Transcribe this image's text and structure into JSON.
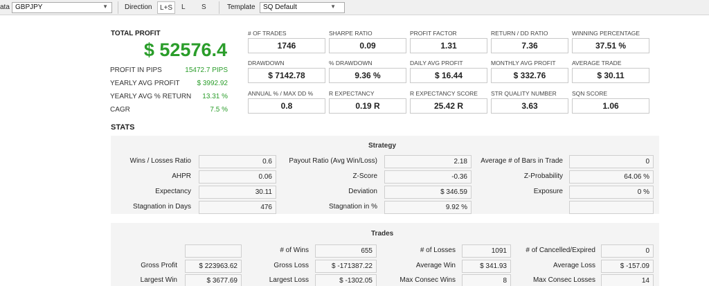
{
  "toolbar": {
    "data_label": "ata",
    "symbol": "GBPJPY",
    "direction_label": "Direction",
    "directions": [
      "L+S",
      "L",
      "S"
    ],
    "active_direction": "L+S",
    "template_label": "Template",
    "template_value": "SQ Default"
  },
  "summary": {
    "total_profit_label": "TOTAL PROFIT",
    "total_profit_value": "$ 52576.4",
    "rows": [
      {
        "label": "PROFIT IN PIPS",
        "value": "15472.7 PIPS"
      },
      {
        "label": "YEARLY AVG PROFIT",
        "value": "$ 3992.92"
      },
      {
        "label": "YEARLY AVG % RETURN",
        "value": "13.31 %"
      },
      {
        "label": "CAGR",
        "value": "7.5 %"
      }
    ]
  },
  "metrics": [
    {
      "label": "# OF TRADES",
      "value": "1746"
    },
    {
      "label": "SHARPE RATIO",
      "value": "0.09"
    },
    {
      "label": "PROFIT FACTOR",
      "value": "1.31"
    },
    {
      "label": "RETURN / DD RATIO",
      "value": "7.36"
    },
    {
      "label": "WINNING PERCENTAGE",
      "value": "37.51 %"
    },
    {
      "label": "DRAWDOWN",
      "value": "$ 7142.78"
    },
    {
      "label": "% DRAWDOWN",
      "value": "9.36 %"
    },
    {
      "label": "DAILY AVG PROFIT",
      "value": "$ 16.44"
    },
    {
      "label": "MONTHLY AVG PROFIT",
      "value": "$ 332.76"
    },
    {
      "label": "AVERAGE TRADE",
      "value": "$ 30.11"
    },
    {
      "label": "ANNUAL % / MAX DD %",
      "value": "0.8"
    },
    {
      "label": "R EXPECTANCY",
      "value": "0.19 R"
    },
    {
      "label": "R EXPECTANCY SCORE",
      "value": "25.42 R"
    },
    {
      "label": "STR QUALITY NUMBER",
      "value": "3.63"
    },
    {
      "label": "SQN SCORE",
      "value": "1.06"
    }
  ],
  "stats": {
    "heading": "STATS",
    "strategy_title": "Strategy",
    "strategy": [
      {
        "label": "Wins / Losses Ratio",
        "value": "0.6"
      },
      {
        "label": "Payout Ratio (Avg Win/Loss)",
        "value": "2.18"
      },
      {
        "label": "Average # of Bars in Trade",
        "value": "0"
      },
      {
        "label": "AHPR",
        "value": "0.06"
      },
      {
        "label": "Z-Score",
        "value": "-0.36"
      },
      {
        "label": "Z-Probability",
        "value": "64.06 %"
      },
      {
        "label": "Expectancy",
        "value": "30.11"
      },
      {
        "label": "Deviation",
        "value": "$ 346.59"
      },
      {
        "label": "Exposure",
        "value": "0 %"
      },
      {
        "label": "Stagnation in Days",
        "value": "476"
      },
      {
        "label": "Stagnation in %",
        "value": "9.92 %"
      },
      {
        "label": "",
        "value": ""
      }
    ],
    "trades_title": "Trades",
    "trades": [
      {
        "label": "",
        "value": ""
      },
      {
        "label": "# of Wins",
        "value": "655"
      },
      {
        "label": "# of Losses",
        "value": "1091"
      },
      {
        "label": "# of Cancelled/Expired",
        "value": "0"
      },
      {
        "label": "Gross Profit",
        "value": "$ 223963.62"
      },
      {
        "label": "Gross Loss",
        "value": "$ -171387.22"
      },
      {
        "label": "Average Win",
        "value": "$ 341.93"
      },
      {
        "label": "Average Loss",
        "value": "$ -157.09"
      },
      {
        "label": "Largest Win",
        "value": "$ 3677.69"
      },
      {
        "label": "Largest Loss",
        "value": "$ -1302.05"
      },
      {
        "label": "Max Consec Wins",
        "value": "8"
      },
      {
        "label": "Max Consec Losses",
        "value": "14"
      }
    ]
  }
}
